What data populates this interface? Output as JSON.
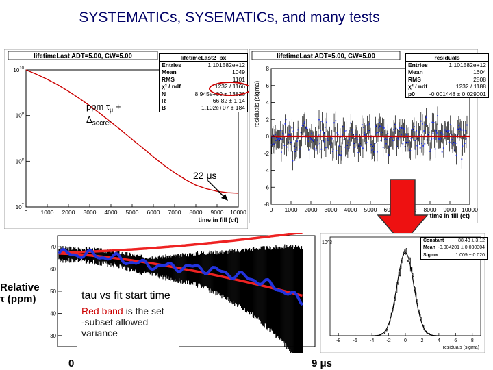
{
  "slide": {
    "title": "SYSTEMATICs, SYSEMATICs, and many tests",
    "annot_ppm": "ppm τ",
    "annot_mu": "μ",
    "annot_plus": " +",
    "annot_delta": "Δ",
    "annot_secret": "secret",
    "annot_22us": "22 μs",
    "relative_tau_line1": "Relative",
    "relative_tau_line2": "τ (ppm)",
    "tau_vs_fit": "tau vs fit start time",
    "red_band_red": "Red band",
    "red_band_rest": " is the set",
    "subset_line": "-subset allowed",
    "variance_line": "variance",
    "x_start": "0",
    "x_end": "9 μs",
    "colors": {
      "title": "#000066",
      "red": "#cc0000",
      "blue": "#2233dd",
      "arrow_red": "#ee1111",
      "circle": "#cc0000"
    }
  },
  "chart_data": [
    {
      "type": "line",
      "title": "lifetimeLast ADT=5.00, CW=5.00",
      "xlabel": "time in fill (ct)",
      "ylabel": "",
      "log_y": true,
      "x_ticks": [
        "0",
        "1000",
        "2000",
        "3000",
        "4000",
        "5000",
        "6000",
        "7000",
        "8000",
        "9000",
        "10000"
      ],
      "y_ticks": [
        "10^10",
        "10^9",
        "10^8",
        "10^7"
      ],
      "xlim": [
        0,
        10000
      ],
      "ylim": [
        10000000.0,
        10000000000.0
      ],
      "series": [
        {
          "x": [
            0,
            500,
            1000,
            1500,
            2000,
            2500,
            3000,
            3500,
            4000,
            4500,
            5000,
            5500,
            6000,
            6500,
            7000,
            7500,
            8000,
            8500,
            9000,
            9500,
            10000
          ],
          "values": [
            10000000000.0,
            8000000000.0,
            6200000000.0,
            4700000000.0,
            3400000000.0,
            2400000000.0,
            1650000000.0,
            1100000000.0,
            720000000.0,
            470000000.0,
            300000000.0,
            195000000.0,
            125000000.0,
            82000000.0,
            56000000.0,
            40000000.0,
            30000000.0,
            25000000.0,
            22000000.0,
            20500000.0,
            20000000.0
          ]
        }
      ],
      "stats": {
        "name": "lifetimeLast2_px",
        "rows": [
          {
            "k": "Entries",
            "v": "1.101582e+12"
          },
          {
            "k": "Mean",
            "v": "1049"
          },
          {
            "k": "RMS",
            "v": "1101"
          },
          {
            "k": "χ² / ndf",
            "v": "1232 / 1166"
          },
          {
            "k": "N",
            "v": "8.945e+09 ± 13826"
          },
          {
            "k": "R",
            "v": "66.82 ± 1.14"
          },
          {
            "k": "B",
            "v": "1.102e+07 ± 184"
          }
        ]
      }
    },
    {
      "type": "scatter",
      "title": "lifetimeLast ADT=5.00, CW=5.00",
      "xlabel": "time in fill (ct)",
      "ylabel": "residuals (sigma)",
      "x_ticks": [
        "0",
        "1000",
        "2000",
        "3000",
        "4000",
        "5000",
        "6000",
        "7000",
        "8000",
        "9000",
        "10000"
      ],
      "y_ticks": [
        "8",
        "6",
        "4",
        "2",
        "0",
        "-2",
        "-4",
        "-6",
        "-8"
      ],
      "xlim": [
        0,
        10000
      ],
      "ylim": [
        -8,
        8
      ],
      "stats": {
        "name": "residuals",
        "rows": [
          {
            "k": "Entries",
            "v": "1.101582e+12"
          },
          {
            "k": "Mean",
            "v": "1604"
          },
          {
            "k": "RMS",
            "v": "2808"
          },
          {
            "k": "χ² / ndf",
            "v": "1232 / 1188"
          },
          {
            "k": "p0",
            "v": "-0.001448 ± 0.029001"
          }
        ]
      }
    },
    {
      "type": "line",
      "title": "",
      "xlabel": "",
      "ylabel": "",
      "y_ticks": [
        "70",
        "60",
        "50",
        "40",
        "30"
      ],
      "ylim": [
        25,
        75
      ],
      "series": [
        {
          "x": [
            0,
            1,
            2,
            3,
            4,
            5,
            6,
            7,
            8,
            9
          ],
          "values": [
            67,
            66.5,
            65,
            62,
            61,
            60.5,
            58,
            55,
            50,
            42
          ]
        }
      ]
    },
    {
      "type": "bar",
      "title": "",
      "xlabel": "residuals (sigma)",
      "ylabel": "",
      "log_y": true,
      "x_ticks": [
        "-8",
        "-6",
        "-4",
        "-2",
        "0",
        "2",
        "4",
        "6",
        "8"
      ],
      "y_ticks": [
        "10^3"
      ],
      "stats": {
        "name": "",
        "rows": [
          {
            "k": "Constant",
            "v": "88.43 ± 3.12"
          },
          {
            "k": "Mean",
            "v": "-0.004201 ± 0.030304"
          },
          {
            "k": "Sigma",
            "v": "1.009 ± 0.020"
          }
        ]
      }
    }
  ]
}
